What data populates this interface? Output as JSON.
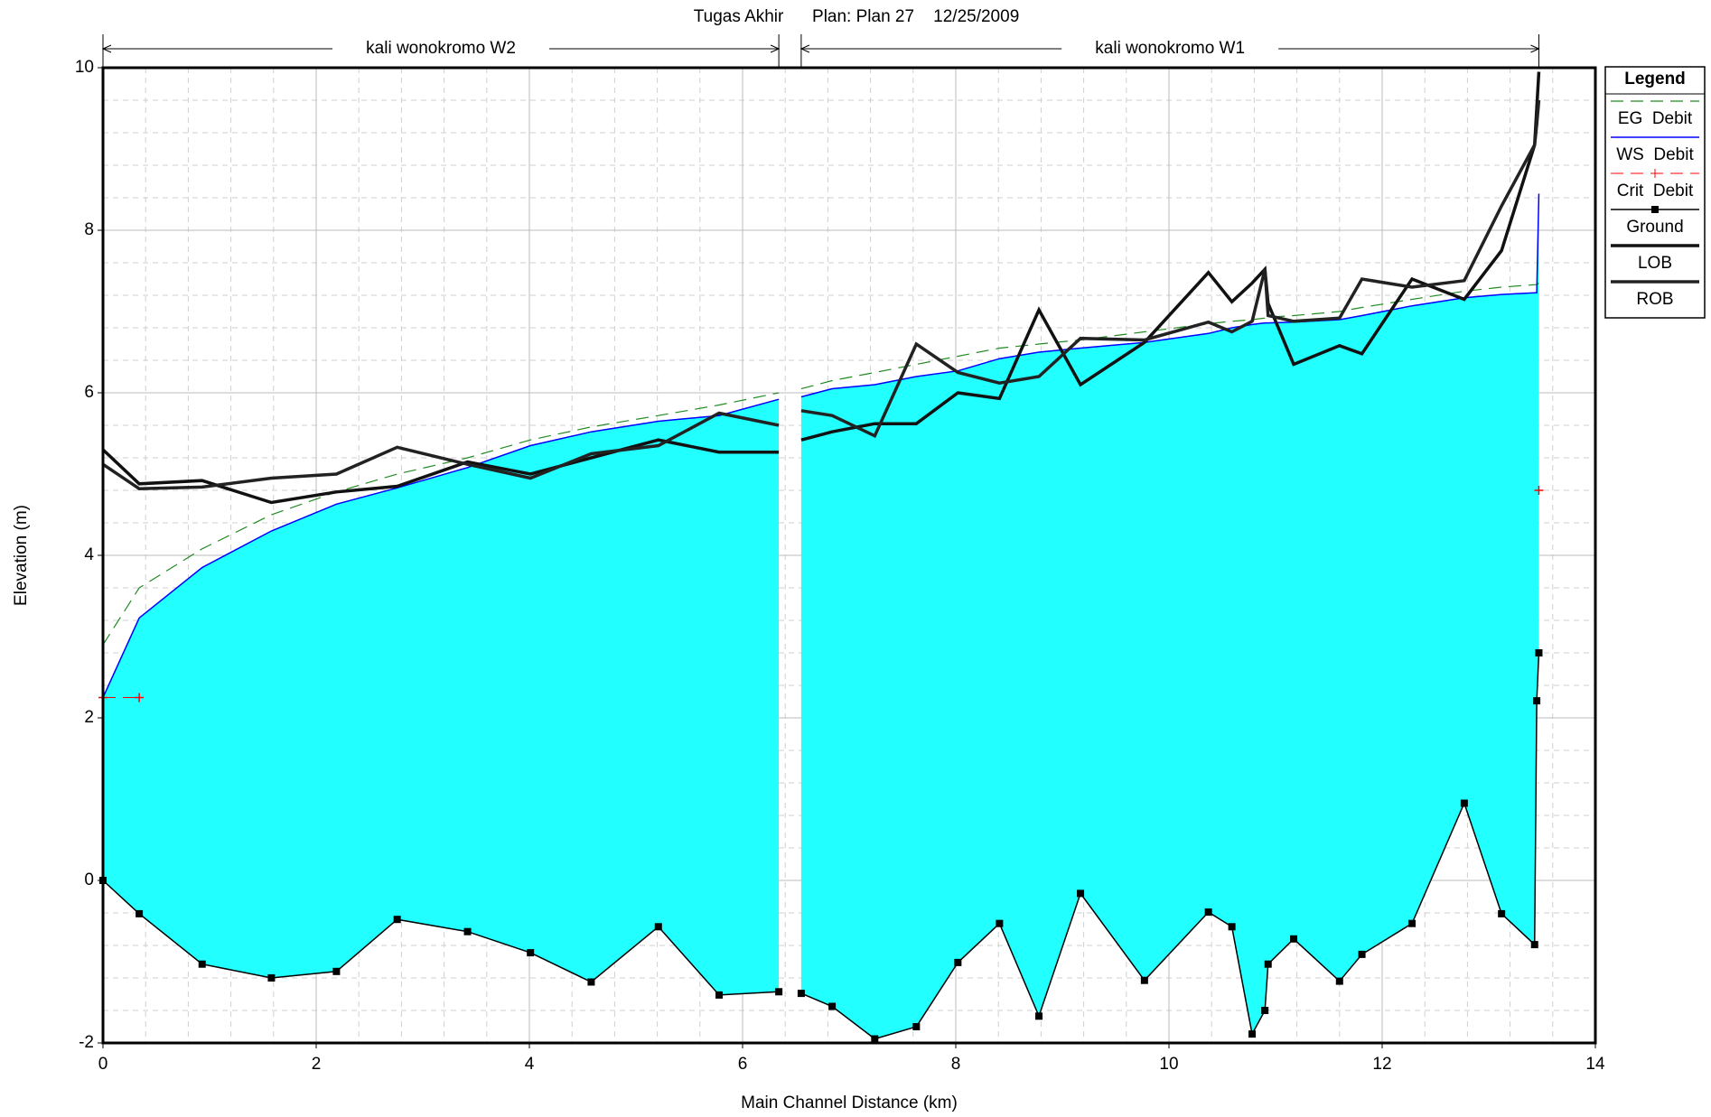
{
  "chart_data": {
    "type": "profile",
    "title": "Tugas Akhir      Plan: Plan 27    12/25/2009",
    "x_label": "Main Channel Distance (km)",
    "y_label": "Elevation (m)",
    "xlim": [
      0,
      14
    ],
    "xticks": [
      0,
      2,
      4,
      6,
      8,
      10,
      12,
      14
    ],
    "ylim": [
      -2,
      10
    ],
    "yticks": [
      -2,
      0,
      2,
      4,
      6,
      8,
      10
    ],
    "grid": true,
    "legend_title": "Legend",
    "legend_position": "right",
    "water_fill": "#22ffff",
    "reaches": [
      {
        "name": "kali wonokromo W2",
        "x": [
          0,
          0.34,
          0.93,
          1.58,
          2.19,
          2.76,
          3.42,
          4.01,
          4.58,
          5.21,
          5.78,
          6.34
        ]
      },
      {
        "name": "kali wonokromo W1",
        "x": [
          6.55,
          6.84,
          7.24,
          7.63,
          8.02,
          8.41,
          8.78,
          9.17,
          9.77,
          10.37,
          10.59,
          10.78,
          10.9,
          10.93,
          11.17,
          11.6,
          11.81,
          12.28,
          12.77,
          13.12,
          13.43,
          13.45,
          13.47
        ]
      }
    ],
    "series": [
      {
        "name": "EG  Debit",
        "color": "#228b22",
        "dashed": true,
        "width": 1.2,
        "values": [
          [
            2.9,
            3.6,
            4.08,
            4.5,
            4.78,
            5.0,
            5.2,
            5.42,
            5.58,
            5.72,
            5.85,
            6.0
          ],
          [
            6.05,
            6.15,
            6.25,
            6.35,
            6.45,
            6.55,
            6.6,
            6.65,
            6.75,
            6.85,
            6.88,
            6.9,
            6.92,
            6.93,
            6.95,
            7.0,
            7.05,
            7.15,
            7.25,
            7.3,
            7.33,
            7.33,
            7.35
          ]
        ]
      },
      {
        "name": "WS  Debit",
        "color": "#0000ff",
        "dashed": false,
        "width": 1.5,
        "values": [
          [
            2.25,
            3.23,
            3.85,
            4.3,
            4.63,
            4.83,
            5.08,
            5.35,
            5.52,
            5.65,
            5.72,
            5.92
          ],
          [
            5.95,
            6.05,
            6.1,
            6.2,
            6.27,
            6.42,
            6.5,
            6.55,
            6.62,
            6.73,
            6.8,
            6.84,
            6.86,
            6.86,
            6.87,
            6.9,
            6.95,
            7.07,
            7.17,
            7.21,
            7.23,
            7.23,
            8.45
          ]
        ]
      },
      {
        "name": "Crit  Debit",
        "color": "#ff0000",
        "dashed": true,
        "width": 1,
        "marker": "plus",
        "values": [
          [
            2.25,
            2.25,
            null,
            null,
            null,
            null,
            null,
            null,
            null,
            null,
            null,
            null
          ],
          [
            null,
            null,
            null,
            null,
            null,
            null,
            null,
            null,
            null,
            null,
            null,
            null,
            null,
            null,
            null,
            null,
            null,
            null,
            null,
            null,
            null,
            null,
            4.8
          ]
        ]
      },
      {
        "name": "Ground",
        "color": "#000000",
        "dashed": false,
        "width": 1.5,
        "marker": "square",
        "values": [
          [
            0,
            -0.41,
            -1.03,
            -1.2,
            -1.12,
            -0.48,
            -0.63,
            -0.89,
            -1.25,
            -0.57,
            -1.41,
            -1.37
          ],
          [
            -1.39,
            -1.55,
            -1.95,
            -1.8,
            -1.01,
            -0.53,
            -1.67,
            -0.16,
            -1.23,
            -0.39,
            -0.57,
            -1.89,
            -1.6,
            -1.03,
            -0.72,
            -1.24,
            -0.91,
            -0.53,
            0.95,
            -0.41,
            -0.79,
            2.21,
            2.8
          ]
        ]
      },
      {
        "name": "LOB",
        "color": "#111111",
        "dashed": false,
        "width": 3.5,
        "values": [
          [
            5.3,
            4.88,
            4.92,
            4.65,
            4.78,
            4.85,
            5.15,
            5.0,
            5.2,
            5.42,
            5.27,
            5.27
          ],
          [
            5.42,
            5.52,
            5.62,
            5.62,
            6.0,
            5.93,
            7.02,
            6.1,
            6.62,
            7.48,
            7.12,
            7.35,
            7.52,
            7.1,
            6.35,
            6.58,
            6.48,
            7.4,
            7.15,
            7.75,
            9.05,
            9.5,
            9.95
          ]
        ]
      },
      {
        "name": "ROB",
        "color": "#222222",
        "dashed": false,
        "width": 3.5,
        "values": [
          [
            5.12,
            4.82,
            4.84,
            4.95,
            5.0,
            5.33,
            5.12,
            4.95,
            5.25,
            5.35,
            5.75,
            5.6
          ],
          [
            5.78,
            5.72,
            5.47,
            6.6,
            6.25,
            6.12,
            6.2,
            6.67,
            6.65,
            6.87,
            6.75,
            6.88,
            7.52,
            6.95,
            6.88,
            6.92,
            7.4,
            7.3,
            7.38,
            8.3,
            9.05,
            9.3,
            9.6
          ]
        ]
      }
    ]
  }
}
